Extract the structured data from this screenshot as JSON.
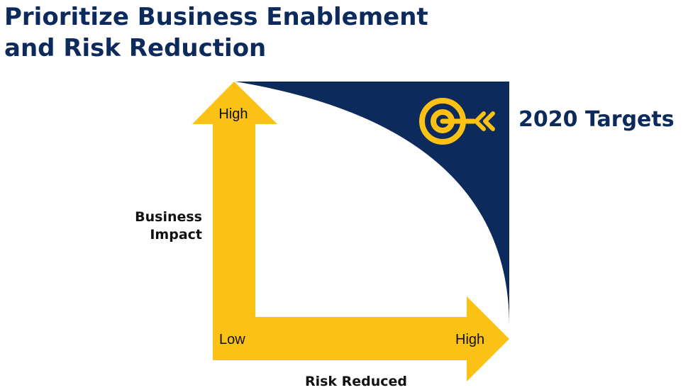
{
  "title_line1": "Prioritize Business Enablement",
  "title_line2": "and Risk Reduction",
  "target_label": "2020 Targets",
  "y_axis": {
    "label_line1": "Business",
    "label_line2": "Impact",
    "high": "High"
  },
  "x_axis": {
    "label": "Risk Reduced",
    "low": "Low",
    "high": "High"
  },
  "icons": {
    "target": "target-arrow-icon"
  },
  "colors": {
    "navy": "#0d2a5c",
    "yellow": "#fbc115",
    "text": "#111111"
  }
}
